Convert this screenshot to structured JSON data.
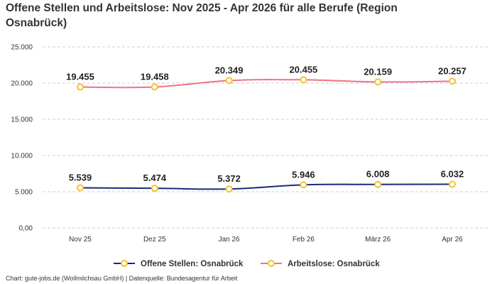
{
  "title": "Offene Stellen und Arbeitslose: Nov 2025 - Apr 2026 für alle Berufe (Region Osnabrück)",
  "footer": "Chart: gute-jobs.de (Wollmilchsau GmbH) | Datenquelle: Bundesagentur für Arbeit",
  "chart_data": {
    "type": "line",
    "title": "Offene Stellen und Arbeitslose: Nov 2025 - Apr 2026 für alle Berufe (Region Osnabrück)",
    "categories": [
      "Nov 25",
      "Dez 25",
      "Jan 26",
      "Feb 26",
      "März 26",
      "Apr 26"
    ],
    "ylim": [
      0,
      25000
    ],
    "yticks": [
      0,
      5000,
      10000,
      15000,
      20000,
      25000
    ],
    "ytick_labels": [
      "0,00",
      "5.000",
      "10.000",
      "15.000",
      "20.000",
      "25.000"
    ],
    "grid": true,
    "legend_position": "bottom",
    "series": [
      {
        "name": "Offene Stellen: Osnabrück",
        "color": "#1b2a7a",
        "values": [
          5539,
          5474,
          5372,
          5946,
          6008,
          6032
        ],
        "labels": [
          "5.539",
          "5.474",
          "5.372",
          "5.946",
          "6.008",
          "6.032"
        ]
      },
      {
        "name": "Arbeitslose: Osnabrück",
        "color": "#f07186",
        "values": [
          19455,
          19458,
          20349,
          20455,
          20159,
          20257
        ],
        "labels": [
          "19.455",
          "19.458",
          "20.349",
          "20.455",
          "20.159",
          "20.257"
        ]
      }
    ],
    "marker_color": "#f2c230"
  }
}
